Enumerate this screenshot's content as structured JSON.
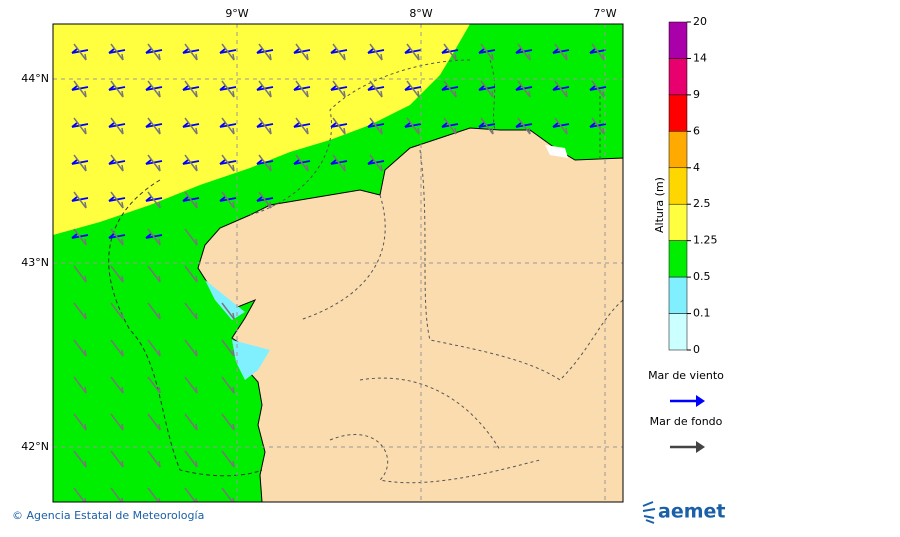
{
  "map": {
    "lon_labels": [
      "9°W",
      "8°W",
      "7°W"
    ],
    "lat_labels": [
      "44°N",
      "43°N",
      "42°N"
    ]
  },
  "colorbar": {
    "title": "Altura (m)",
    "levels": [
      20,
      14,
      9,
      6,
      4,
      2.5,
      1.25,
      0.5,
      0.1,
      0
    ],
    "colors": [
      "#aa00aa",
      "#e8006e",
      "#ff0000",
      "#ffaa00",
      "#ffd700",
      "#ffff40",
      "#00ee00",
      "#80f0ff",
      "#ccffff"
    ]
  },
  "legend": [
    {
      "label": "Mar de viento",
      "color": "#0000ff"
    },
    {
      "label": "Mar de fondo",
      "color": "#444444"
    }
  ],
  "footer": {
    "credit": "© Agencia Estatal de Meteorología",
    "logo": "aemet"
  }
}
